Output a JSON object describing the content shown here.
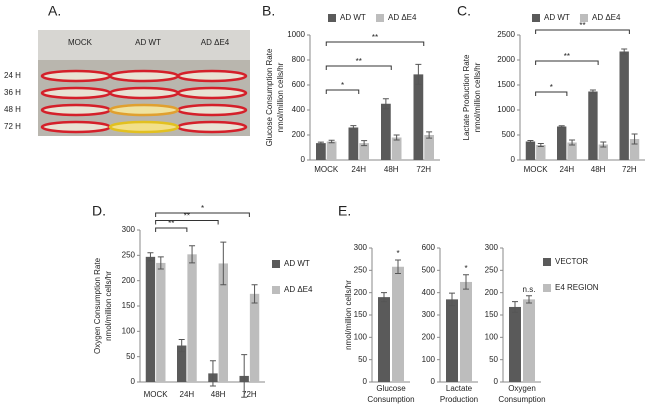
{
  "photo_panel": {
    "panel_label": "A.",
    "columns": [
      "MOCK",
      "AD WT",
      "AD ΔE4"
    ],
    "rows": [
      "24 H",
      "36 H",
      "48 H",
      "72 H"
    ]
  },
  "chart_data": [
    {
      "type": "bar",
      "panel_label": "B.",
      "ylabel": [
        "Glucose Consumption Rate",
        "nmol/million cells/hr"
      ],
      "categories": [
        "MOCK",
        "24H",
        "48H",
        "72H"
      ],
      "series": [
        {
          "name": "AD WT",
          "color": "#5a5a5a",
          "values": [
            135,
            260,
            450,
            685
          ],
          "errors": [
            8,
            15,
            40,
            80
          ]
        },
        {
          "name": "AD ΔE4",
          "color": "#bdbdbd",
          "values": [
            148,
            135,
            180,
            200
          ],
          "errors": [
            10,
            20,
            20,
            25
          ]
        }
      ],
      "ylim": [
        0,
        1000
      ],
      "yticks": [
        0,
        200,
        400,
        600,
        800,
        1000
      ],
      "legend": "top",
      "significance": [
        {
          "from": "MOCK",
          "to": "24H",
          "label": "*"
        },
        {
          "from": "MOCK",
          "to": "48H",
          "label": "**"
        },
        {
          "from": "MOCK",
          "to": "72H",
          "label": "**"
        }
      ]
    },
    {
      "type": "bar",
      "panel_label": "C.",
      "ylabel": [
        "Lactate Production Rate",
        "nmol/million cells/hr"
      ],
      "categories": [
        "MOCK",
        "24H",
        "48H",
        "72H"
      ],
      "series": [
        {
          "name": "AD WT",
          "color": "#5a5a5a",
          "values": [
            370,
            670,
            1370,
            2170
          ],
          "errors": [
            20,
            15,
            30,
            50
          ]
        },
        {
          "name": "AD ΔE4",
          "color": "#bdbdbd",
          "values": [
            300,
            350,
            310,
            420
          ],
          "errors": [
            30,
            50,
            50,
            100
          ]
        }
      ],
      "ylim": [
        0,
        2500
      ],
      "yticks": [
        0,
        500,
        1000,
        1500,
        2000,
        2500
      ],
      "legend": "top",
      "significance": [
        {
          "from": "MOCK",
          "to": "24H",
          "label": "*"
        },
        {
          "from": "MOCK",
          "to": "48H",
          "label": "**"
        },
        {
          "from": "MOCK",
          "to": "72H",
          "label": "**"
        }
      ]
    },
    {
      "type": "bar",
      "panel_label": "D.",
      "ylabel": [
        "Oxygen Consumption Rate",
        "nmol/million cells/hr"
      ],
      "categories": [
        "MOCK",
        "24H",
        "48H",
        "72H"
      ],
      "series": [
        {
          "name": "AD WT",
          "color": "#5a5a5a",
          "values": [
            247,
            72,
            17,
            12
          ],
          "errors": [
            8,
            12,
            25,
            42
          ]
        },
        {
          "name": "AD ΔE4",
          "color": "#bdbdbd",
          "values": [
            235,
            252,
            234,
            174
          ],
          "errors": [
            12,
            17,
            42,
            18
          ]
        }
      ],
      "ylim": [
        0,
        300
      ],
      "yticks": [
        0,
        50,
        100,
        150,
        200,
        250,
        300
      ],
      "legend": "right",
      "significance": [
        {
          "from": "MOCK",
          "to": "24H",
          "label": "**"
        },
        {
          "from": "MOCK",
          "to": "48H",
          "label": "**"
        },
        {
          "from": "MOCK",
          "to": "72H",
          "label": "*"
        }
      ]
    },
    {
      "type": "bar_panels",
      "panel_label": "E.",
      "ylabel": "nmol/million cells/hr",
      "categories": [
        [
          "Glucose",
          "Consumption"
        ],
        [
          "Lactate",
          "Production"
        ],
        [
          "Oxygen",
          "Consumption"
        ]
      ],
      "series": [
        {
          "name": "VECTOR",
          "color": "#5a5a5a",
          "values": [
            190,
            370,
            168
          ],
          "errors": [
            10,
            28,
            12
          ]
        },
        {
          "name": "E4 REGION",
          "color": "#bdbdbd",
          "values": [
            258,
            448,
            185
          ],
          "errors": [
            15,
            32,
            8
          ]
        }
      ],
      "axes": [
        {
          "ylim": [
            0,
            300
          ],
          "yticks": [
            0,
            50,
            100,
            150,
            200,
            250,
            300
          ],
          "annotation": "*"
        },
        {
          "ylim": [
            0,
            600
          ],
          "yticks": [
            0,
            100,
            200,
            300,
            400,
            500,
            600
          ],
          "annotation": "*"
        },
        {
          "ylim": [
            0,
            300
          ],
          "yticks": [
            0,
            50,
            100,
            150,
            200,
            250,
            300
          ],
          "annotation": "n.s."
        }
      ],
      "legend": "right"
    }
  ]
}
